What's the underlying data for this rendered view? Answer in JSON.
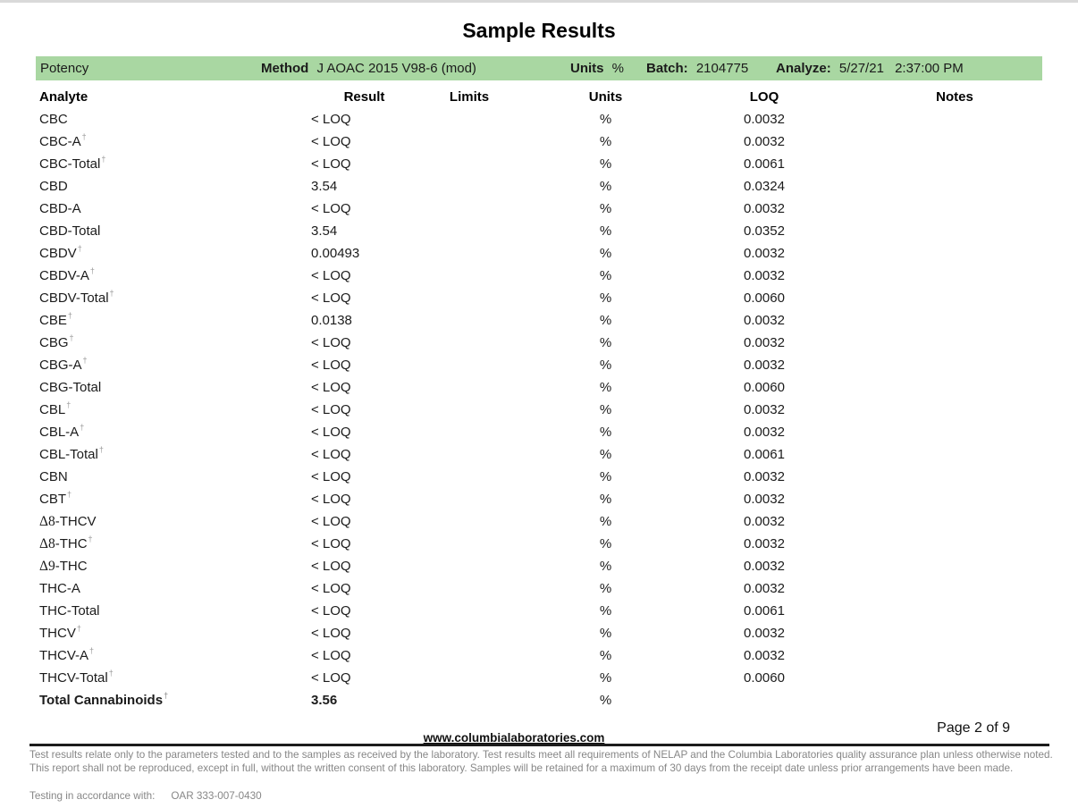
{
  "page": {
    "title": "Sample Results",
    "page_info": "Page 2 of 9",
    "website": "www.columbialaboratories.com"
  },
  "panel_header": {
    "bar_color": "#a9d7a2",
    "section": "Potency",
    "method_label": "Method",
    "method_value": "J AOAC 2015 V98-6 (mod)",
    "units_label": "Units",
    "units_value": "%",
    "batch_label": "Batch:",
    "batch_value": "2104775",
    "analyze_label": "Analyze:",
    "analyze_date": "5/27/21",
    "analyze_time": "2:37:00 PM"
  },
  "table": {
    "columns": [
      "Analyte",
      "Result",
      "Limits",
      "Units",
      "LOQ",
      "Notes"
    ],
    "rows": [
      {
        "pre": "",
        "analyte": "CBC",
        "dagger": false,
        "result": "< LOQ",
        "limits": "",
        "units": "%",
        "loq": "0.0032",
        "notes": "",
        "bold": false
      },
      {
        "pre": "",
        "analyte": "CBC-A",
        "dagger": true,
        "result": "< LOQ",
        "limits": "",
        "units": "%",
        "loq": "0.0032",
        "notes": "",
        "bold": false
      },
      {
        "pre": "",
        "analyte": "CBC-Total",
        "dagger": true,
        "result": "< LOQ",
        "limits": "",
        "units": "%",
        "loq": "0.0061",
        "notes": "",
        "bold": false
      },
      {
        "pre": "",
        "analyte": "CBD",
        "dagger": false,
        "result": "3.54",
        "limits": "",
        "units": "%",
        "loq": "0.0324",
        "notes": "",
        "bold": false
      },
      {
        "pre": "",
        "analyte": "CBD-A",
        "dagger": false,
        "result": "< LOQ",
        "limits": "",
        "units": "%",
        "loq": "0.0032",
        "notes": "",
        "bold": false
      },
      {
        "pre": "",
        "analyte": "CBD-Total",
        "dagger": false,
        "result": "3.54",
        "limits": "",
        "units": "%",
        "loq": "0.0352",
        "notes": "",
        "bold": false
      },
      {
        "pre": "",
        "analyte": "CBDV",
        "dagger": true,
        "result": "0.00493",
        "limits": "",
        "units": "%",
        "loq": "0.0032",
        "notes": "",
        "bold": false
      },
      {
        "pre": "",
        "analyte": "CBDV-A",
        "dagger": true,
        "result": "< LOQ",
        "limits": "",
        "units": "%",
        "loq": "0.0032",
        "notes": "",
        "bold": false
      },
      {
        "pre": "",
        "analyte": "CBDV-Total",
        "dagger": true,
        "result": "< LOQ",
        "limits": "",
        "units": "%",
        "loq": "0.0060",
        "notes": "",
        "bold": false
      },
      {
        "pre": "",
        "analyte": "CBE",
        "dagger": true,
        "result": "0.0138",
        "limits": "",
        "units": "%",
        "loq": "0.0032",
        "notes": "",
        "bold": false
      },
      {
        "pre": "",
        "analyte": "CBG",
        "dagger": true,
        "result": "< LOQ",
        "limits": "",
        "units": "%",
        "loq": "0.0032",
        "notes": "",
        "bold": false
      },
      {
        "pre": "",
        "analyte": "CBG-A",
        "dagger": true,
        "result": "< LOQ",
        "limits": "",
        "units": "%",
        "loq": "0.0032",
        "notes": "",
        "bold": false
      },
      {
        "pre": "",
        "analyte": "CBG-Total",
        "dagger": false,
        "result": "< LOQ",
        "limits": "",
        "units": "%",
        "loq": "0.0060",
        "notes": "",
        "bold": false
      },
      {
        "pre": "",
        "analyte": "CBL",
        "dagger": true,
        "result": "< LOQ",
        "limits": "",
        "units": "%",
        "loq": "0.0032",
        "notes": "",
        "bold": false
      },
      {
        "pre": "",
        "analyte": "CBL-A",
        "dagger": true,
        "result": "< LOQ",
        "limits": "",
        "units": "%",
        "loq": "0.0032",
        "notes": "",
        "bold": false
      },
      {
        "pre": "",
        "analyte": "CBL-Total",
        "dagger": true,
        "result": "< LOQ",
        "limits": "",
        "units": "%",
        "loq": "0.0061",
        "notes": "",
        "bold": false
      },
      {
        "pre": "",
        "analyte": "CBN",
        "dagger": false,
        "result": "< LOQ",
        "limits": "",
        "units": "%",
        "loq": "0.0032",
        "notes": "",
        "bold": false
      },
      {
        "pre": "",
        "analyte": "CBT",
        "dagger": true,
        "result": "< LOQ",
        "limits": "",
        "units": "%",
        "loq": "0.0032",
        "notes": "",
        "bold": false
      },
      {
        "pre": "Δ8",
        "analyte": "-THCV",
        "dagger": false,
        "result": "< LOQ",
        "limits": "",
        "units": "%",
        "loq": "0.0032",
        "notes": "",
        "bold": false
      },
      {
        "pre": "Δ8",
        "analyte": "-THC",
        "dagger": true,
        "result": "< LOQ",
        "limits": "",
        "units": "%",
        "loq": "0.0032",
        "notes": "",
        "bold": false
      },
      {
        "pre": "Δ9",
        "analyte": "-THC",
        "dagger": false,
        "result": "< LOQ",
        "limits": "",
        "units": "%",
        "loq": "0.0032",
        "notes": "",
        "bold": false
      },
      {
        "pre": "",
        "analyte": "THC-A",
        "dagger": false,
        "result": "< LOQ",
        "limits": "",
        "units": "%",
        "loq": "0.0032",
        "notes": "",
        "bold": false
      },
      {
        "pre": "",
        "analyte": "THC-Total",
        "dagger": false,
        "result": "< LOQ",
        "limits": "",
        "units": "%",
        "loq": "0.0061",
        "notes": "",
        "bold": false
      },
      {
        "pre": "",
        "analyte": "THCV",
        "dagger": true,
        "result": "< LOQ",
        "limits": "",
        "units": "%",
        "loq": "0.0032",
        "notes": "",
        "bold": false
      },
      {
        "pre": "",
        "analyte": "THCV-A",
        "dagger": true,
        "result": "< LOQ",
        "limits": "",
        "units": "%",
        "loq": "0.0032",
        "notes": "",
        "bold": false
      },
      {
        "pre": "",
        "analyte": "THCV-Total",
        "dagger": true,
        "result": "< LOQ",
        "limits": "",
        "units": "%",
        "loq": "0.0060",
        "notes": "",
        "bold": false
      },
      {
        "pre": "",
        "analyte": "Total Cannabinoids",
        "dagger": true,
        "result": "3.56",
        "limits": "",
        "units": "%",
        "loq": "",
        "notes": "",
        "bold": true
      }
    ]
  },
  "footer": {
    "disclaimer": "Test results relate only to the parameters tested and to the samples as received by the laboratory. Test results meet all requirements of NELAP and the Columbia Laboratories quality assurance plan unless otherwise noted. This report shall not be reproduced, except in full, without the written consent of this laboratory. Samples will be retained for a maximum of 30 days from the receipt date unless prior arrangements have been made.",
    "accordance_label": "Testing in accordance with:",
    "accordance_value": "OAR 333-007-0430"
  }
}
